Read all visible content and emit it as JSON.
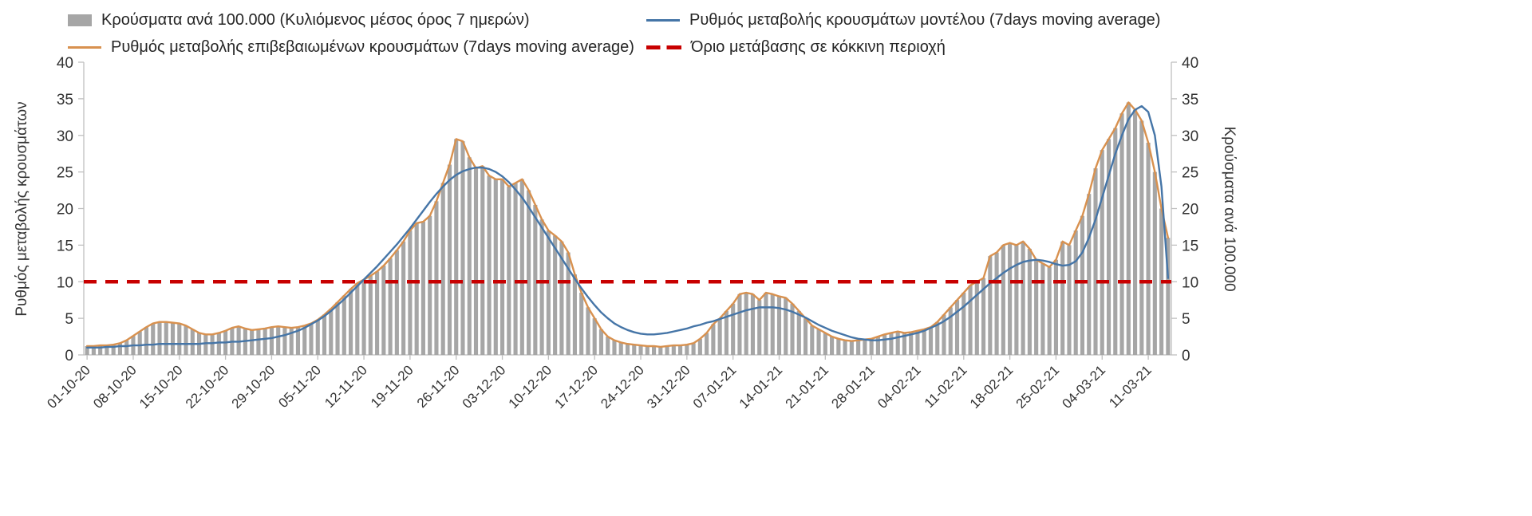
{
  "legend": {
    "items": [
      {
        "label": "Κρούσματα ανά 100.000 (Κυλιόμενος μέσος όρος 7 ημερών)",
        "marker": "bar-swatch"
      },
      {
        "label": "Ρυθμός μεταβολής κρουσμάτων μοντέλου (7days moving average)",
        "marker": "line-swatch"
      },
      {
        "label": "Ρυθμός μεταβολής επιβεβαιωμένων κρουσμάτων (7days moving average)",
        "marker": "line-swatch"
      },
      {
        "label": "Όριο μετάβασης σε κόκκινη περιοχή",
        "marker": "dashed-line-swatch"
      }
    ]
  },
  "axes": {
    "left_title": "Ρυθμός μεταβολής κρουσμάτων",
    "right_title": "Κρούσματα ανά 100.000",
    "y_ticks": [
      0,
      5,
      10,
      15,
      20,
      25,
      30,
      35,
      40
    ]
  },
  "colors": {
    "bar": "#a6a6a6",
    "model_line": "#4575a7",
    "confirmed_line": "#d8914f",
    "threshold_line": "#c80000",
    "text": "#333333",
    "axis": "#bfbfbf"
  },
  "chart_data": {
    "type": "bar",
    "subtype": "bar-plus-lines",
    "title": "",
    "ylim": [
      0,
      40
    ],
    "y_ticks": [
      0,
      5,
      10,
      15,
      20,
      25,
      30,
      35,
      40
    ],
    "left_axis_label": "Ρυθμός μεταβολής κρουσμάτων",
    "right_axis_label": "Κρούσματα ανά 100.000",
    "legend_position": "top",
    "grid": false,
    "x_tick_interval_days": 7,
    "x_tick_labels": [
      "01-10-20",
      "08-10-20",
      "15-10-20",
      "22-10-20",
      "29-10-20",
      "05-11-20",
      "12-11-20",
      "19-11-20",
      "26-11-20",
      "03-12-20",
      "10-12-20",
      "17-12-20",
      "24-12-20",
      "31-12-20",
      "07-01-21",
      "14-01-21",
      "21-01-21",
      "28-01-21",
      "04-02-21",
      "11-02-21",
      "18-02-21",
      "25-02-21",
      "04-03-21",
      "11-03-21"
    ],
    "threshold_value": 10,
    "series": [
      {
        "name": "Κρούσματα ανά 100.000 (Κυλιόμενος μέσος όρος 7 ημερών)",
        "type": "bar",
        "axis": "right",
        "color": "#a6a6a6",
        "values": [
          1.2,
          1.2,
          1.3,
          1.3,
          1.4,
          1.6,
          2.0,
          2.6,
          3.2,
          3.8,
          4.3,
          4.5,
          4.5,
          4.4,
          4.3,
          4.0,
          3.5,
          3.0,
          2.8,
          2.8,
          3.0,
          3.3,
          3.7,
          3.9,
          3.6,
          3.4,
          3.5,
          3.6,
          3.8,
          3.9,
          3.8,
          3.7,
          3.8,
          4.0,
          4.3,
          4.8,
          5.5,
          6.3,
          7.2,
          8.1,
          9.0,
          9.8,
          10.3,
          10.8,
          11.4,
          12.2,
          13.2,
          14.3,
          15.5,
          17.0,
          18.0,
          18.2,
          19.0,
          21.0,
          23.5,
          26.0,
          29.5,
          29.2,
          27.0,
          25.5,
          25.8,
          24.5,
          24.0,
          24.0,
          23.0,
          23.5,
          24.0,
          22.5,
          20.5,
          18.5,
          17.0,
          16.3,
          15.5,
          14.0,
          11.0,
          8.5,
          6.5,
          5.0,
          3.5,
          2.5,
          2.0,
          1.7,
          1.5,
          1.4,
          1.3,
          1.2,
          1.2,
          1.1,
          1.2,
          1.3,
          1.3,
          1.4,
          1.6,
          2.2,
          3.0,
          4.2,
          5.0,
          6.0,
          7.0,
          8.3,
          8.5,
          8.3,
          7.5,
          8.5,
          8.3,
          8.0,
          7.8,
          7.0,
          6.0,
          5.0,
          4.0,
          3.5,
          3.0,
          2.5,
          2.2,
          2.0,
          1.9,
          2.0,
          2.1,
          2.2,
          2.5,
          2.8,
          3.0,
          3.2,
          3.0,
          3.1,
          3.3,
          3.5,
          3.8,
          4.5,
          5.5,
          6.5,
          7.5,
          8.5,
          9.5,
          10.0,
          10.5,
          13.5,
          14.0,
          15.0,
          15.3,
          15.0,
          15.5,
          14.5,
          13.0,
          12.5,
          12.0,
          13.0,
          15.5,
          15.0,
          17.0,
          19.0,
          22.0,
          25.5,
          28.0,
          29.5,
          31.0,
          33.0,
          34.5,
          33.5,
          32.0,
          29.0,
          25.0,
          20.0,
          16.0
        ]
      },
      {
        "name": "Ρυθμός μεταβολής επιβεβαιωμένων κρουσμάτων (7days moving average)",
        "type": "line",
        "axis": "left",
        "color": "#d8914f",
        "values": [
          1.2,
          1.2,
          1.3,
          1.3,
          1.4,
          1.6,
          2.0,
          2.6,
          3.2,
          3.8,
          4.3,
          4.5,
          4.5,
          4.4,
          4.3,
          4.0,
          3.5,
          3.0,
          2.8,
          2.8,
          3.0,
          3.3,
          3.7,
          3.9,
          3.6,
          3.4,
          3.5,
          3.6,
          3.8,
          3.9,
          3.8,
          3.7,
          3.8,
          4.0,
          4.3,
          4.8,
          5.5,
          6.3,
          7.2,
          8.1,
          9.0,
          9.8,
          10.3,
          10.8,
          11.4,
          12.2,
          13.2,
          14.3,
          15.5,
          17.0,
          18.0,
          18.2,
          19.0,
          21.0,
          23.5,
          26.0,
          29.5,
          29.2,
          27.0,
          25.5,
          25.8,
          24.5,
          24.0,
          24.0,
          23.0,
          23.5,
          24.0,
          22.5,
          20.5,
          18.5,
          17.0,
          16.3,
          15.5,
          14.0,
          11.0,
          8.5,
          6.5,
          5.0,
          3.5,
          2.5,
          2.0,
          1.7,
          1.5,
          1.4,
          1.3,
          1.2,
          1.2,
          1.1,
          1.2,
          1.3,
          1.3,
          1.4,
          1.6,
          2.2,
          3.0,
          4.2,
          5.0,
          6.0,
          7.0,
          8.3,
          8.5,
          8.3,
          7.5,
          8.5,
          8.3,
          8.0,
          7.8,
          7.0,
          6.0,
          5.0,
          4.0,
          3.5,
          3.0,
          2.5,
          2.2,
          2.0,
          1.9,
          2.0,
          2.1,
          2.2,
          2.5,
          2.8,
          3.0,
          3.2,
          3.0,
          3.1,
          3.3,
          3.5,
          3.8,
          4.5,
          5.5,
          6.5,
          7.5,
          8.5,
          9.5,
          10.0,
          10.5,
          13.5,
          14.0,
          15.0,
          15.3,
          15.0,
          15.5,
          14.5,
          13.0,
          12.5,
          12.0,
          13.0,
          15.5,
          15.0,
          17.0,
          19.0,
          22.0,
          25.5,
          28.0,
          29.5,
          31.0,
          33.0,
          34.5,
          33.5,
          32.0,
          29.0,
          25.0,
          20.0,
          16.0
        ]
      },
      {
        "name": "Ρυθμός μεταβολής κρουσμάτων μοντέλου (7days moving average)",
        "type": "line",
        "axis": "left",
        "color": "#4575a7",
        "values": [
          1.0,
          1.0,
          1.0,
          1.1,
          1.1,
          1.2,
          1.2,
          1.3,
          1.3,
          1.4,
          1.4,
          1.5,
          1.5,
          1.5,
          1.5,
          1.5,
          1.5,
          1.5,
          1.6,
          1.6,
          1.7,
          1.7,
          1.8,
          1.8,
          1.9,
          2.0,
          2.1,
          2.2,
          2.3,
          2.5,
          2.7,
          3.0,
          3.3,
          3.7,
          4.2,
          4.7,
          5.3,
          6.0,
          6.8,
          7.6,
          8.5,
          9.4,
          10.3,
          11.2,
          12.1,
          13.1,
          14.1,
          15.1,
          16.2,
          17.3,
          18.5,
          19.7,
          20.9,
          22.0,
          23.0,
          23.9,
          24.6,
          25.1,
          25.4,
          25.6,
          25.6,
          25.4,
          25.0,
          24.4,
          23.6,
          22.6,
          21.5,
          20.2,
          18.8,
          17.4,
          16.0,
          14.6,
          13.2,
          11.8,
          10.4,
          9.1,
          7.9,
          6.8,
          5.8,
          5.0,
          4.3,
          3.8,
          3.4,
          3.1,
          2.9,
          2.8,
          2.8,
          2.9,
          3.0,
          3.2,
          3.4,
          3.6,
          3.9,
          4.1,
          4.4,
          4.6,
          4.9,
          5.2,
          5.5,
          5.8,
          6.1,
          6.3,
          6.5,
          6.5,
          6.5,
          6.4,
          6.2,
          5.9,
          5.5,
          5.1,
          4.6,
          4.1,
          3.7,
          3.3,
          3.0,
          2.7,
          2.4,
          2.2,
          2.1,
          2.0,
          2.0,
          2.1,
          2.2,
          2.4,
          2.6,
          2.8,
          3.0,
          3.3,
          3.7,
          4.1,
          4.6,
          5.2,
          5.9,
          6.6,
          7.4,
          8.2,
          9.0,
          9.8,
          10.5,
          11.2,
          11.8,
          12.3,
          12.7,
          12.9,
          13.0,
          12.9,
          12.7,
          12.4,
          12.2,
          12.3,
          12.8,
          14.0,
          16.0,
          18.5,
          21.5,
          24.5,
          27.5,
          30.0,
          32.2,
          33.5,
          34.0,
          33.2,
          30.0,
          23.0,
          10.5
        ]
      },
      {
        "name": "Όριο μετάβασης σε κόκκινη περιοχή",
        "type": "threshold",
        "axis": "left",
        "color": "#c80000",
        "value": 10
      }
    ]
  }
}
